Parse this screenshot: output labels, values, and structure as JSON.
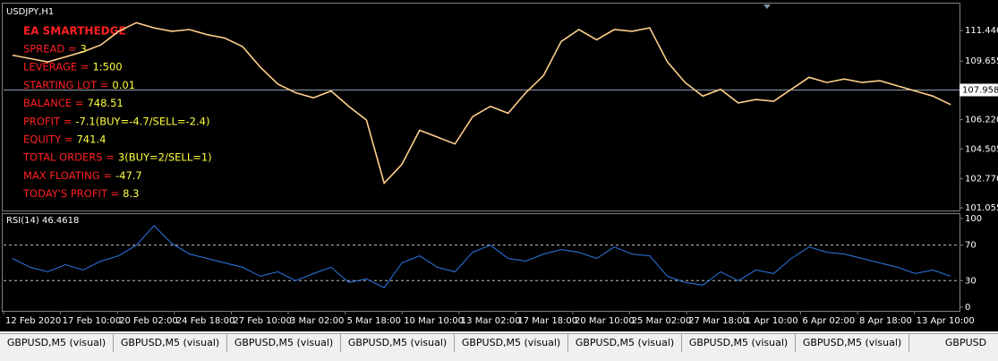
{
  "chart_data": [
    {
      "type": "line",
      "title": "USDJPY,H1",
      "color": "#ffcf8a",
      "grid": false,
      "values": [
        110.0,
        109.8,
        109.6,
        109.9,
        110.2,
        110.6,
        111.4,
        111.9,
        111.6,
        111.4,
        111.5,
        111.2,
        111.0,
        110.5,
        109.3,
        108.3,
        107.8,
        107.5,
        107.9,
        107.0,
        106.2,
        102.5,
        103.6,
        105.6,
        105.2,
        104.8,
        106.4,
        107.0,
        106.6,
        107.8,
        108.8,
        110.8,
        111.5,
        110.9,
        111.5,
        111.4,
        111.6,
        109.6,
        108.4,
        107.6,
        108.0,
        107.2,
        107.4,
        107.3,
        108.0,
        108.7,
        108.4,
        108.6,
        108.4,
        108.5,
        108.2,
        107.9,
        107.6,
        107.1
      ],
      "ylim": [
        100.9,
        113.02
      ],
      "yticks": [
        {
          "value": 101.055,
          "label": "101.055"
        },
        {
          "value": 102.77,
          "label": "102.770"
        },
        104.505,
        {
          "value": 106.22,
          "label": "106.220"
        },
        109.655,
        {
          "value": 111.44,
          "label": "111.440"
        }
      ],
      "current_price": 107.958,
      "current_price_color": "#8a9bb0"
    },
    {
      "type": "line",
      "title": "RSI(14) 46.4618",
      "color": "#2a78e4",
      "values": [
        55,
        45,
        40,
        48,
        42,
        52,
        58,
        70,
        92,
        72,
        60,
        55,
        50,
        45,
        35,
        40,
        30,
        38,
        45,
        28,
        32,
        22,
        50,
        58,
        45,
        40,
        62,
        70,
        55,
        52,
        60,
        65,
        62,
        55,
        68,
        60,
        58,
        35,
        28,
        25,
        40,
        30,
        42,
        38,
        55,
        68,
        62,
        60,
        55,
        50,
        45,
        38,
        42,
        35
      ],
      "ylim": [
        -4,
        105
      ],
      "yticks": [
        0,
        30,
        70,
        100
      ],
      "levels": [
        30,
        70
      ]
    }
  ],
  "overlay": {
    "title": "EA SMARTHEDGE",
    "rows": [
      {
        "label": "SPREAD =",
        "value": "3"
      },
      {
        "label": "LEVERAGE =",
        "value": "1:500"
      },
      {
        "label": "STARTING LOT =",
        "value": "0.01"
      },
      {
        "label": "BALANCE =",
        "value": "748.51"
      },
      {
        "label": "PROFIT =",
        "value": "-7.1(BUY=-4.7/SELL=-2.4)"
      },
      {
        "label": "EQUITY =",
        "value": "741.4"
      },
      {
        "label": "TOTAL ORDERS =",
        "value": "3(BUY=2/SELL=1)"
      },
      {
        "label": "MAX FLOATING =",
        "value": "-47.7"
      },
      {
        "label": "TODAY'S PROFIT =",
        "value": "8.3"
      }
    ]
  },
  "time_axis": [
    "12 Feb 2020",
    "17 Feb 10:00",
    "20 Feb 02:00",
    "24 Feb 18:00",
    "27 Feb 10:00",
    "3 Mar 02:00",
    "5 Mar 18:00",
    "10 Mar 10:00",
    "13 Mar 02:00",
    "17 Mar 18:00",
    "20 Mar 10:00",
    "25 Mar 02:00",
    "27 Mar 18:00",
    "1 Apr 10:00",
    "6 Apr 02:00",
    "8 Apr 18:00",
    "13 Apr 10:00"
  ],
  "tabs": [
    "GBPUSD,M5 (visual)",
    "GBPUSD,M5 (visual)",
    "GBPUSD,M5 (visual)",
    "GBPUSD,M5 (visual)",
    "GBPUSD,M5 (visual)",
    "GBPUSD,M5 (visual)",
    "GBPUSD,M5 (visual)",
    "GBPUSD,M5 (visual)",
    "GBPUSD"
  ]
}
